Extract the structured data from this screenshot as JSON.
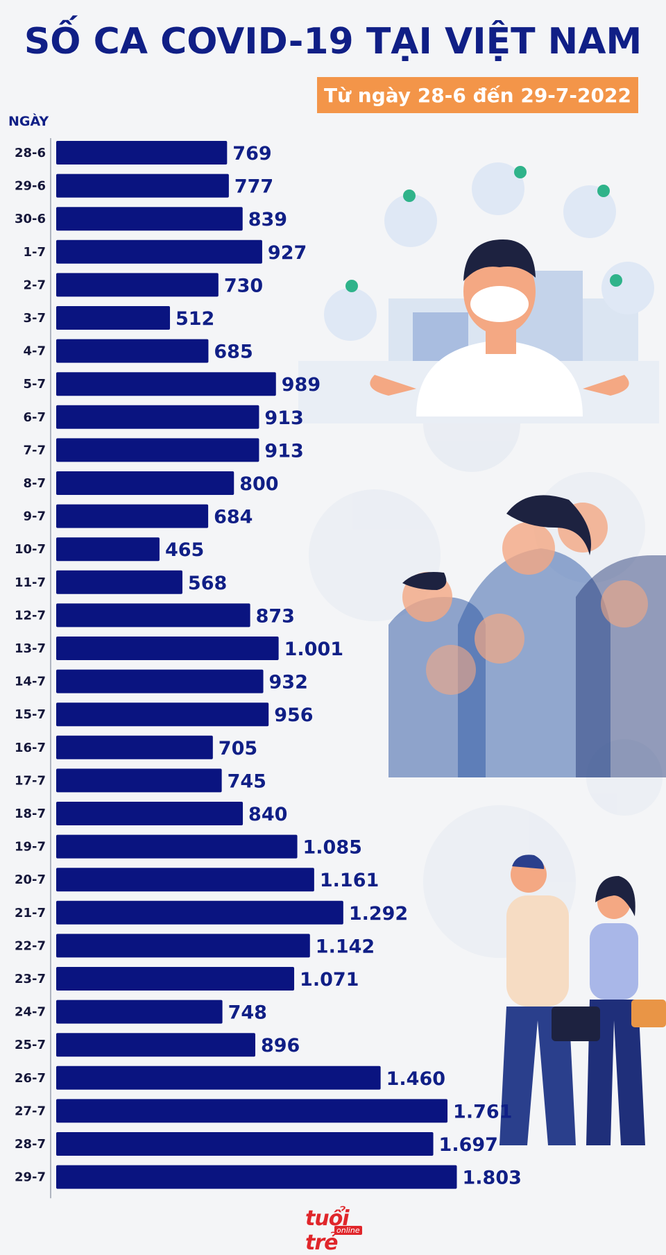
{
  "header": {
    "title": "SỐ CA COVID-19 TẠI VIỆT NAM",
    "subtitle": "Từ ngày 28-6 đến 29-7-2022",
    "y_axis_label": "NGÀY"
  },
  "colors": {
    "bar": "#0a1480",
    "title": "#101f86",
    "subtitle_bg": "#f39549",
    "background": "#f4f5f7",
    "logo": "#e0262b"
  },
  "logo": {
    "text": "tuổi trẻ",
    "sub": "online"
  },
  "chart_data": {
    "type": "bar",
    "orientation": "horizontal",
    "title": "SỐ CA COVID-19 TẠI VIỆT NAM",
    "subtitle": "Từ ngày 28-6 đến 29-7-2022",
    "ylabel": "NGÀY",
    "xlim": [
      0,
      1900
    ],
    "categories": [
      "28-6",
      "29-6",
      "30-6",
      "1-7",
      "2-7",
      "3-7",
      "4-7",
      "5-7",
      "6-7",
      "7-7",
      "8-7",
      "9-7",
      "10-7",
      "11-7",
      "12-7",
      "13-7",
      "14-7",
      "15-7",
      "16-7",
      "17-7",
      "18-7",
      "19-7",
      "20-7",
      "21-7",
      "22-7",
      "23-7",
      "24-7",
      "25-7",
      "26-7",
      "27-7",
      "28-7",
      "29-7"
    ],
    "values": [
      769,
      777,
      839,
      927,
      730,
      512,
      685,
      989,
      913,
      913,
      800,
      684,
      465,
      568,
      873,
      1001,
      932,
      956,
      705,
      745,
      840,
      1085,
      1161,
      1292,
      1142,
      1071,
      748,
      896,
      1460,
      1761,
      1697,
      1803
    ],
    "value_labels": [
      "769",
      "777",
      "839",
      "927",
      "730",
      "512",
      "685",
      "989",
      "913",
      "913",
      "800",
      "684",
      "465",
      "568",
      "873",
      "1.001",
      "932",
      "956",
      "705",
      "745",
      "840",
      "1.085",
      "1.161",
      "1.292",
      "1.142",
      "1.071",
      "748",
      "896",
      "1.460",
      "1.761",
      "1.697",
      "1.803"
    ]
  }
}
